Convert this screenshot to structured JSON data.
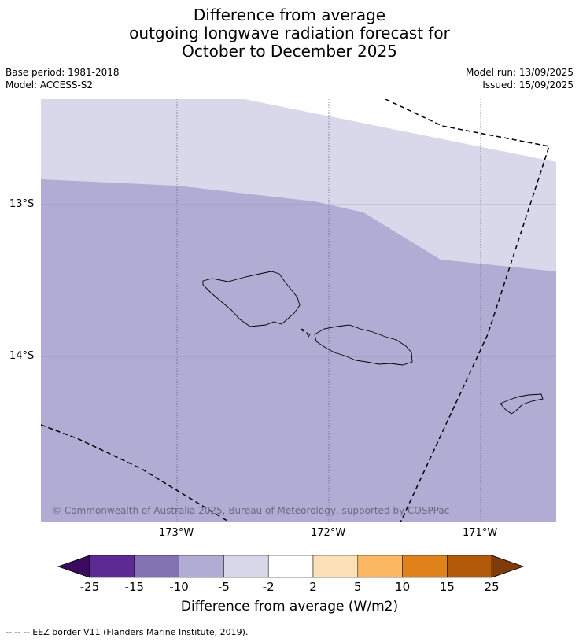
{
  "title": {
    "line1": "Difference from average",
    "line2": "outgoing longwave radiation forecast for",
    "line3": "October to December 2025"
  },
  "meta": {
    "base_period": "Base period: 1981-2018",
    "model": "Model: ACCESS-S2",
    "model_run": "Model run: 13/09/2025",
    "issued": "Issued: 15/09/2025"
  },
  "map": {
    "lat_labels": [
      "13°S",
      "14°S"
    ],
    "lon_labels": [
      "173°W",
      "172°W",
      "171°W"
    ],
    "copyright": "© Commonwealth of Australia 2025, Bureau of Meteorology, supported by COSPPac",
    "fill_colors": {
      "light_band": "#d8d8ea",
      "main": "#b1acd3",
      "outside": "#ffffff"
    }
  },
  "colorbar": {
    "title": "Difference from average (W/m2)",
    "labels": [
      "-25",
      "-15",
      "-10",
      "-5",
      "-2",
      "2",
      "5",
      "10",
      "15",
      "25"
    ],
    "colors": [
      "#3a0a5e",
      "#5c2a92",
      "#8272b1",
      "#b1acd3",
      "#d8d8ea",
      "#ffffff",
      "#fde0b6",
      "#fbb862",
      "#e0821b",
      "#b3590a",
      "#7f3b08"
    ]
  },
  "legend_note": "--  --  -- EEZ border V11 (Flanders Marine Institute, 2019)."
}
